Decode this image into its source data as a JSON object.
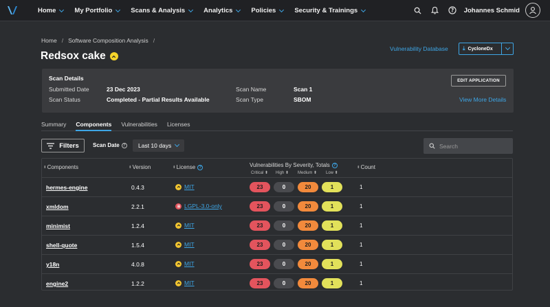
{
  "nav": {
    "items": [
      "Home",
      "My Portfolio",
      "Scans & Analysis",
      "Analytics",
      "Policies",
      "Security & Trainings"
    ],
    "user": "Johannes Schmid"
  },
  "breadcrumb": [
    "Home",
    "Software Composition Analysis"
  ],
  "page_title": "Redsox cake",
  "actions": {
    "vuln_db": "Vulnerability Database",
    "cyclonedx": "CycloneDx"
  },
  "scan_details": {
    "title": "Scan Details",
    "submitted_label": "Submitted Date",
    "submitted_value": "23 Dec 2023",
    "status_label": "Scan Status",
    "status_value": "Completed - Partial Results Available",
    "name_label": "Scan Name",
    "name_value": "Scan 1",
    "type_label": "Scan Type",
    "type_value": "SBOM",
    "edit_button": "EDIT APPLICATION",
    "more_link": "View More Details"
  },
  "tabs": [
    "Summary",
    "Components",
    "Vulnerabilities",
    "Licenses"
  ],
  "active_tab": "Components",
  "toolbar": {
    "filters": "Filters",
    "scan_date_label": "Scan Date",
    "scan_date_value": "Last 10 days",
    "search_placeholder": "Search"
  },
  "table": {
    "headers": {
      "components": "Components",
      "version": "Version",
      "license": "License",
      "vulns": "Vulnerabilities By Severity, Totals",
      "count": "Count"
    },
    "severity_labels": [
      "Critical",
      "High",
      "Medium",
      "Low"
    ],
    "severity_colors": {
      "critical": "#e3545d",
      "high": "#4a4b4f",
      "medium": "#f28a3c",
      "low": "#e2e15a",
      "license_ok": "#f2c530",
      "license_bad": "#e3545d"
    },
    "rows": [
      {
        "component": "hermes-engine",
        "version": "0.4.3",
        "license": "MIT",
        "license_risk": "ok",
        "critical": "23",
        "high": "0",
        "medium": "20",
        "low": "1",
        "count": "1"
      },
      {
        "component": "xmldom",
        "version": "2.2.1",
        "license": "LGPL-3.0-only",
        "license_risk": "bad",
        "critical": "23",
        "high": "0",
        "medium": "20",
        "low": "1",
        "count": "1"
      },
      {
        "component": "minimist",
        "version": "1.2.4",
        "license": "MIT",
        "license_risk": "ok",
        "critical": "23",
        "high": "0",
        "medium": "20",
        "low": "1",
        "count": "1"
      },
      {
        "component": "shell-quote",
        "version": "1.5.4",
        "license": "MIT",
        "license_risk": "ok",
        "critical": "23",
        "high": "0",
        "medium": "20",
        "low": "1",
        "count": "1"
      },
      {
        "component": "y18n",
        "version": "4.0.8",
        "license": "MIT",
        "license_risk": "ok",
        "critical": "23",
        "high": "0",
        "medium": "20",
        "low": "1",
        "count": "1"
      },
      {
        "component": "engine2",
        "version": "1.2.2",
        "license": "MIT",
        "license_risk": "ok",
        "critical": "23",
        "high": "0",
        "medium": "20",
        "low": "1",
        "count": "1"
      }
    ]
  }
}
